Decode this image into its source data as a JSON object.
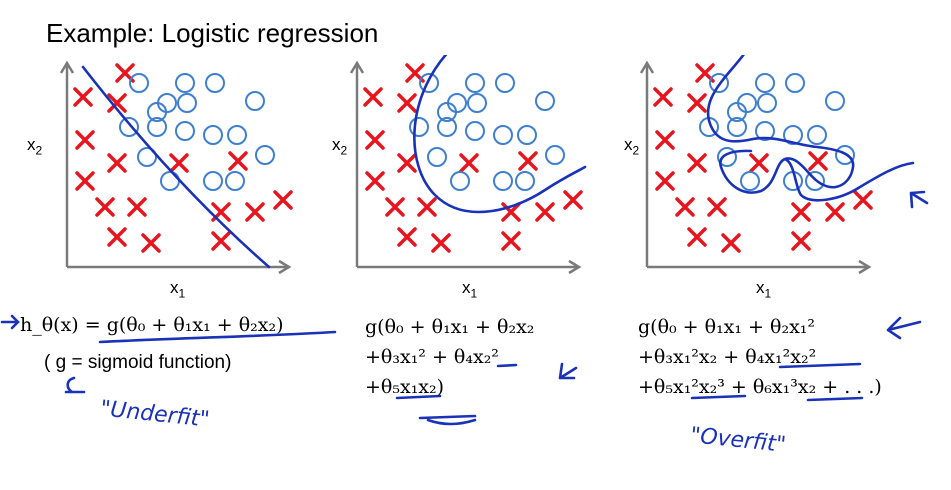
{
  "title": "Example: Logistic regression",
  "axes": {
    "x_label": "x",
    "x_sub": "1",
    "y_label": "x",
    "y_sub": "2"
  },
  "colors": {
    "cross": "#e8141e",
    "circle": "#3f7fd0",
    "ink": "#1a32b8",
    "axis": "#7a7a7a"
  },
  "panels": [
    {
      "formula_lines": [
        "h_θ(x) = g(θ₀ + θ₁x₁ + θ₂x₂)"
      ],
      "caption": "( g = sigmoid function)",
      "annotation": "\"Underfit\""
    },
    {
      "formula_lines": [
        "g(θ₀ + θ₁x₁ + θ₂x₂",
        "+θ₃x₁² + θ₄x₂²",
        "+θ₅x₁x₂)"
      ],
      "caption": "",
      "annotation": ""
    },
    {
      "formula_lines": [
        "g(θ₀ + θ₁x₁ + θ₂x₁²",
        "+θ₃x₁²x₂ + θ₄x₁²x₂²",
        "+θ₅x₁²x₂³ + θ₆x₁³x₂ + . . .)"
      ],
      "caption": "",
      "annotation": "\"Overfit\""
    }
  ]
}
